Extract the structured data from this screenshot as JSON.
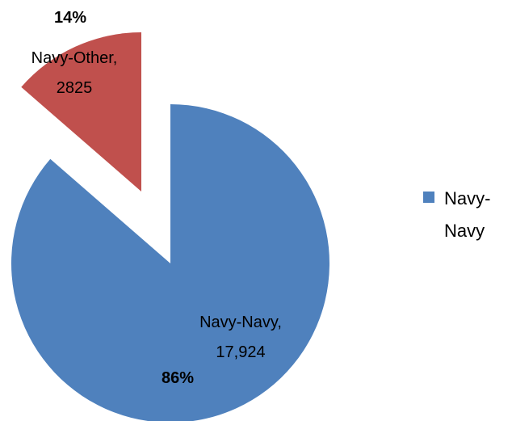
{
  "chart_data": {
    "type": "pie",
    "title": "",
    "exploded_slice": "Navy-Other",
    "slices": [
      {
        "category": "Navy-Navy",
        "value_text": "17,924",
        "value": 17924,
        "percent": 86,
        "percent_text": "86%",
        "color": "#4F81BD"
      },
      {
        "category": "Navy-Other",
        "value_text": "2825",
        "value": 2825,
        "percent": 14,
        "percent_text": "14%",
        "color": "#C0504D"
      }
    ],
    "legend": {
      "placement": "right",
      "entries": [
        {
          "label": "Navy-Navy",
          "color": "#4F81BD"
        }
      ]
    }
  }
}
